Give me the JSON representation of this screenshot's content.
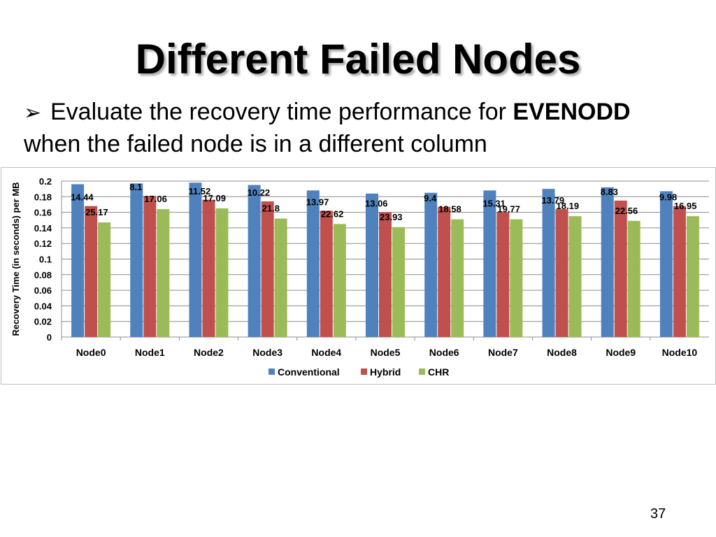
{
  "slide": {
    "title": "Different Failed Nodes",
    "bullet_arrow": "➢",
    "bullet_text_1": "Evaluate the recovery time performance for ",
    "bullet_bold": "EVENODD",
    "bullet_text_2": "when the failed node is in a different column",
    "page_number": "37"
  },
  "chart_data": {
    "type": "bar",
    "ylabel": "Recovery  Time (in seconds) per MB",
    "ylim": [
      0,
      0.2
    ],
    "yticks": [
      "0",
      "0.02",
      "0.04",
      "0.06",
      "0.08",
      "0.1",
      "0.12",
      "0.14",
      "0.16",
      "0.18",
      "0.2"
    ],
    "grid": true,
    "legend_position": "bottom",
    "categories": [
      "Node0",
      "Node1",
      "Node2",
      "Node3",
      "Node4",
      "Node5",
      "Node6",
      "Node7",
      "Node8",
      "Node9",
      "Node10"
    ],
    "series": [
      {
        "name": "Conventional",
        "color": "#4f81bd",
        "values": [
          0.196,
          0.197,
          0.198,
          0.195,
          0.188,
          0.184,
          0.185,
          0.188,
          0.19,
          0.192,
          0.187
        ]
      },
      {
        "name": "Hybrid",
        "color": "#c0504d",
        "values": [
          0.168,
          0.181,
          0.176,
          0.174,
          0.162,
          0.16,
          0.167,
          0.16,
          0.164,
          0.175,
          0.168
        ]
      },
      {
        "name": "CHR",
        "color": "#9bbb59",
        "values": [
          0.147,
          0.164,
          0.165,
          0.152,
          0.145,
          0.141,
          0.151,
          0.151,
          0.155,
          0.149,
          0.155
        ]
      }
    ],
    "annotations": {
      "hybrid": [
        "14.44",
        "8.1",
        "11.52",
        "10.22",
        "13.97",
        "13.06",
        "9.4",
        "15.31",
        "13.79",
        "8.83",
        "9.98"
      ],
      "chr": [
        "25.17",
        "17.06",
        "17.09",
        "21.8",
        "22.62",
        "23.93",
        "18.58",
        "19.77",
        "18.19",
        "22.56",
        "16.95"
      ]
    }
  }
}
